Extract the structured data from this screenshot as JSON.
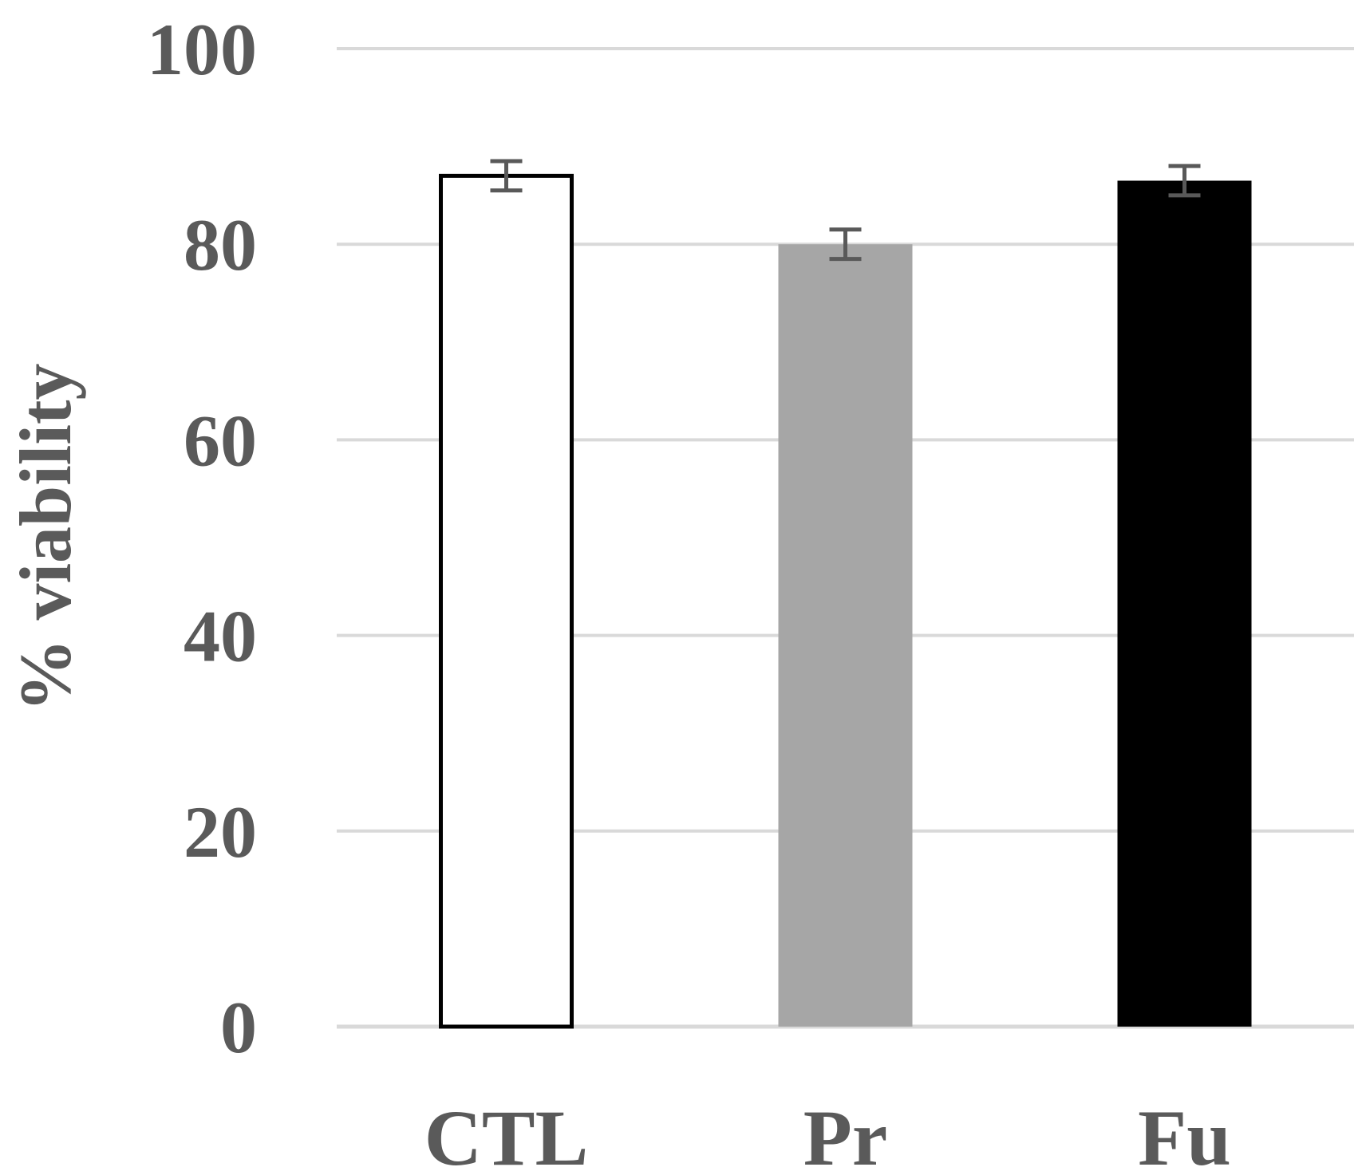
{
  "chart_data": {
    "type": "bar",
    "title": "",
    "xlabel": "",
    "ylabel": "% viability",
    "ylim": [
      0,
      100
    ],
    "yticks": [
      "0",
      "20",
      "40",
      "60",
      "80",
      "100"
    ],
    "grid": true,
    "categories": [
      "CTL",
      "Pr",
      "Fu"
    ],
    "values": [
      87,
      80,
      86.5
    ],
    "errors": [
      1.5,
      1.5,
      1.5
    ],
    "colors": {
      "CTL": "#ffffff",
      "Pr": "#a6a6a6",
      "Fu": "#000000",
      "CTL_outline": "#000000"
    }
  }
}
